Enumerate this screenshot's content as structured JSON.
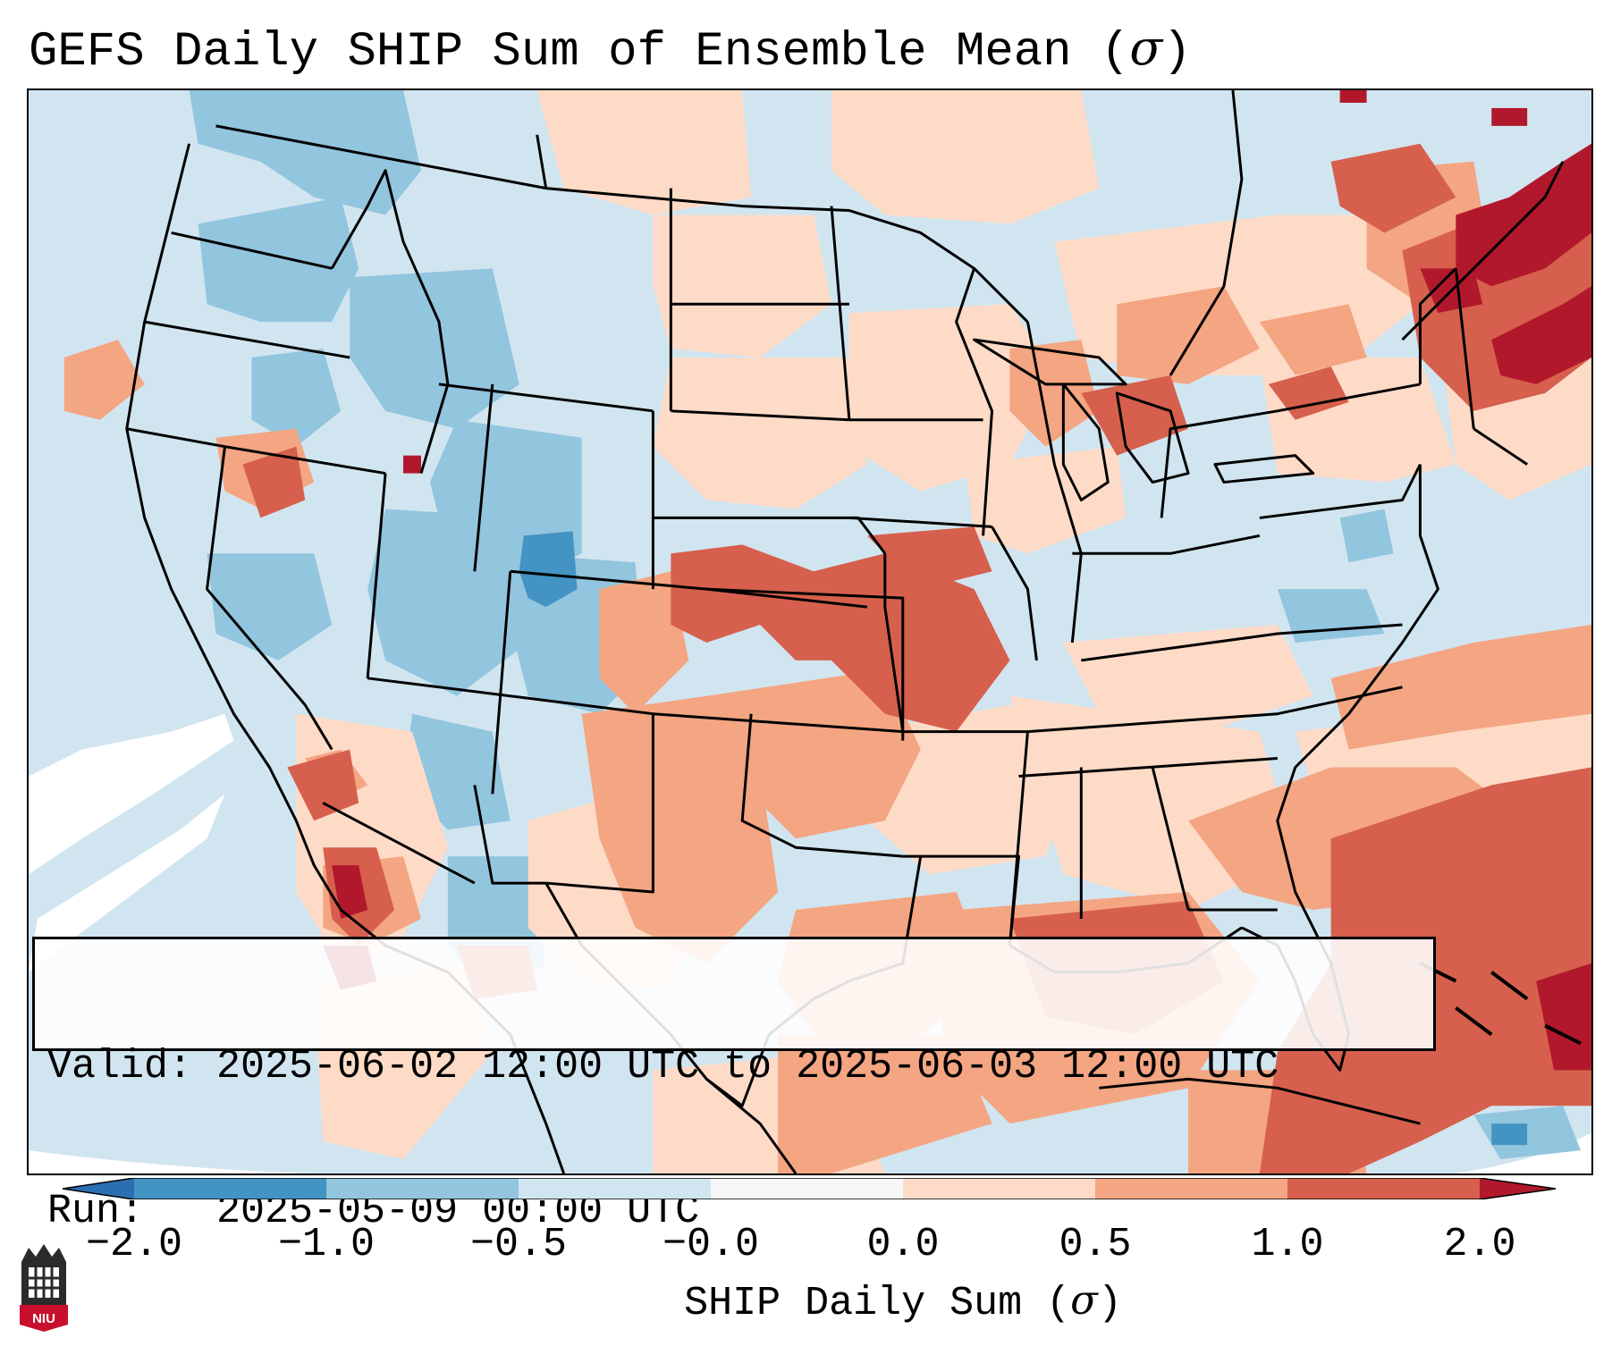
{
  "title": {
    "prefix": "GEFS Daily SHIP Sum of Ensemble Mean (",
    "sigma": "σ",
    "suffix": ")"
  },
  "info": {
    "valid_line": "Valid: 2025-06-02 12:00 UTC to 2025-06-03 12:00 UTC",
    "run_line": "Run:   2025-05-09 00:00 UTC"
  },
  "colorbar": {
    "ticks": [
      "−2.0",
      "−1.0",
      "−0.5",
      "−0.0",
      "0.0",
      "0.5",
      "1.0",
      "2.0"
    ],
    "label_prefix": "SHIP Daily Sum (",
    "label_sigma": "σ",
    "label_suffix": ")",
    "colors": {
      "lt_neg2": "#2b6fb3",
      "neg2_neg1": "#4393c3",
      "neg1_neg05": "#92c5de",
      "neg05_neg0": "#d1e5f0",
      "neutral": "#f7f7f7",
      "pos0_pos05": "#fddbc7",
      "pos05_pos1": "#f4a582",
      "pos1_pos2": "#d6604d",
      "gt_pos2": "#b2182b"
    }
  },
  "logo": {
    "text": "NIU",
    "name": "niu-logo"
  },
  "map": {
    "outline_color": "#000000",
    "field_note_colors": [
      "#d1e5f0",
      "#fddbc7",
      "#f4a582",
      "#d6604d",
      "#b2182b",
      "#92c5de",
      "#4393c3",
      "#ffffff"
    ]
  }
}
